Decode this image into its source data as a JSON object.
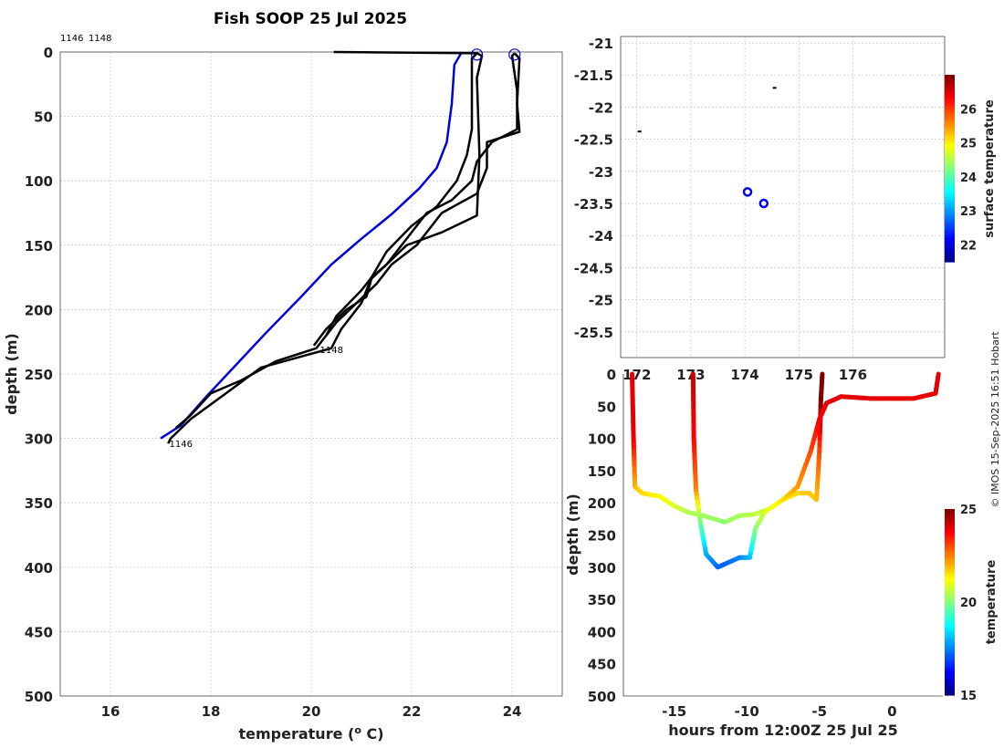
{
  "title": "Fish SOOP 25 Jul 2025",
  "credit": "© IMOS 15-Sep-2025 16:51 Hobart",
  "chart_data": [
    {
      "type": "line",
      "name": "temperature-profiles",
      "xlabel": "temperature (",
      "xlabel_sup": "o",
      "xlabel_end": " C)",
      "ylabel": "depth (m)",
      "xlim": [
        15,
        25
      ],
      "ylim": [
        0,
        500
      ],
      "xticks": [
        16,
        18,
        20,
        22,
        24
      ],
      "yticks": [
        0,
        50,
        100,
        150,
        200,
        250,
        300,
        350,
        400,
        450,
        500
      ],
      "top_labels": [
        "1146",
        "1148"
      ],
      "profile_labels": [
        {
          "text": "1148",
          "temp": 20.1,
          "depth": 231
        },
        {
          "text": "1146",
          "temp": 17.1,
          "depth": 304
        }
      ],
      "surface_markers": [
        {
          "temp": 23.3,
          "depth": 2
        },
        {
          "temp": 24.05,
          "depth": 2
        }
      ],
      "climatology": {
        "color": "#0000dd",
        "points": [
          [
            17.0,
            300
          ],
          [
            17.4,
            290
          ],
          [
            17.9,
            268
          ],
          [
            18.5,
            243
          ],
          [
            19.1,
            218
          ],
          [
            19.8,
            190
          ],
          [
            20.4,
            165
          ],
          [
            21.0,
            145
          ],
          [
            21.6,
            126
          ],
          [
            22.15,
            106
          ],
          [
            22.5,
            90
          ],
          [
            22.7,
            70
          ],
          [
            22.8,
            40
          ],
          [
            22.85,
            10
          ],
          [
            23.0,
            0
          ]
        ]
      },
      "profiles": [
        {
          "color": "#000000",
          "points": [
            [
              20.45,
              0
            ],
            [
              23.3,
              1
            ],
            [
              23.4,
              3
            ],
            [
              23.3,
              20
            ],
            [
              23.35,
              80
            ],
            [
              23.3,
              127
            ],
            [
              22.6,
              140
            ],
            [
              21.9,
              150
            ],
            [
              21.5,
              165
            ],
            [
              21.2,
              176
            ],
            [
              21.1,
              190
            ],
            [
              20.7,
              200
            ],
            [
              20.3,
              215
            ],
            [
              20.05,
              228
            ]
          ]
        },
        {
          "color": "#000000",
          "points": [
            [
              23.3,
              1
            ],
            [
              23.2,
              5
            ],
            [
              23.2,
              60
            ],
            [
              23.1,
              80
            ],
            [
              22.9,
              100
            ],
            [
              22.5,
              120
            ],
            [
              22.0,
              135
            ],
            [
              21.5,
              155
            ],
            [
              21.2,
              175
            ],
            [
              21.0,
              195
            ],
            [
              20.6,
              215
            ],
            [
              20.4,
              230
            ],
            [
              19.0,
              245
            ],
            [
              18.3,
              265
            ],
            [
              17.6,
              285
            ],
            [
              17.2,
              300
            ],
            [
              17.15,
              304
            ]
          ]
        },
        {
          "color": "#000000",
          "points": [
            [
              24.05,
              1
            ],
            [
              24.0,
              3
            ],
            [
              24.1,
              30
            ],
            [
              24.1,
              60
            ],
            [
              23.6,
              70
            ],
            [
              23.3,
              85
            ],
            [
              23.2,
              100
            ],
            [
              22.8,
              115
            ],
            [
              22.3,
              125
            ],
            [
              22.0,
              140
            ],
            [
              21.7,
              155
            ],
            [
              21.5,
              165
            ],
            [
              21.2,
              175
            ],
            [
              21.0,
              185
            ],
            [
              20.5,
              205
            ],
            [
              20.3,
              220
            ]
          ]
        },
        {
          "color": "#000000",
          "points": [
            [
              24.05,
              1
            ],
            [
              24.15,
              5
            ],
            [
              24.1,
              40
            ],
            [
              24.15,
              62
            ],
            [
              23.5,
              70
            ],
            [
              23.5,
              90
            ],
            [
              23.3,
              110
            ],
            [
              22.6,
              125
            ],
            [
              22.1,
              150
            ],
            [
              21.6,
              165
            ],
            [
              21.3,
              180
            ],
            [
              20.9,
              195
            ],
            [
              20.5,
              210
            ],
            [
              20.1,
              230
            ],
            [
              19.3,
              240
            ],
            [
              18.6,
              255
            ],
            [
              18.0,
              265
            ],
            [
              17.6,
              282
            ],
            [
              17.3,
              292
            ]
          ]
        }
      ]
    },
    {
      "type": "scatter",
      "name": "map",
      "colorbar_label": "surface temperature",
      "colorbar_range": [
        21.5,
        27
      ],
      "colorbar_ticks": [
        22,
        23,
        24,
        25,
        26
      ],
      "xlim": [
        171.7,
        177.7
      ],
      "ylim": [
        -25.9,
        -20.9
      ],
      "xticks_visible": [
        "172",
        "173",
        "174",
        "175",
        "176"
      ],
      "yticks": [
        -21,
        -21.5,
        -22,
        -22.5,
        -23,
        -23.5,
        -24,
        -24.5,
        -25,
        -25.5
      ],
      "markers": [
        [
          174.05,
          -23.32
        ],
        [
          174.35,
          -23.5
        ]
      ],
      "track_dots": [
        [
          172.05,
          -22.38
        ],
        [
          174.55,
          -21.7
        ]
      ]
    },
    {
      "type": "scatter",
      "name": "time-depth",
      "xlabel": "hours from 12:00Z 25 Jul 25",
      "ylabel": "depth (m)",
      "colorbar_label": "temperature",
      "colorbar_range": [
        15,
        25
      ],
      "colorbar_ticks": [
        15,
        20,
        25
      ],
      "xlim": [
        -18.5,
        3.5
      ],
      "ylim": [
        0,
        500
      ],
      "xticks": [
        -15,
        -10,
        -5,
        0
      ],
      "yticks": [
        0,
        50,
        100,
        150,
        200,
        250,
        300,
        350,
        400,
        450,
        500
      ],
      "segments": [
        {
          "points": [
            [
              -17.9,
              0,
              24
            ],
            [
              -17.8,
              100,
              24
            ],
            [
              -17.7,
              175,
              22
            ],
            [
              -17.2,
              185,
              21.6
            ],
            [
              -16,
              190,
              21.3
            ],
            [
              -15,
              205,
              21
            ],
            [
              -14,
              215,
              20.5
            ],
            [
              -13,
              220,
              20.3
            ],
            [
              -11.5,
              230,
              20.2
            ],
            [
              -10.5,
              220,
              20.4
            ],
            [
              -9.5,
              218,
              20.6
            ],
            [
              -8.5,
              210,
              20.8
            ],
            [
              -7.5,
              195,
              21.2
            ],
            [
              -6.5,
              185,
              21.6
            ],
            [
              -5.7,
              185,
              21.8
            ],
            [
              -5.2,
              195,
              21.8
            ],
            [
              -5.0,
              120,
              23
            ],
            [
              -4.9,
              40,
              25
            ],
            [
              -4.8,
              0,
              25
            ]
          ]
        },
        {
          "points": [
            [
              -13.7,
              0,
              24.2
            ],
            [
              -13.65,
              100,
              23.8
            ],
            [
              -13.5,
              180,
              22.5
            ],
            [
              -13.2,
              230,
              20
            ],
            [
              -12.8,
              280,
              18
            ],
            [
              -12,
              300,
              17.3
            ],
            [
              -11.5,
              295,
              17.2
            ],
            [
              -10.5,
              285,
              17.5
            ],
            [
              -9.8,
              285,
              18
            ],
            [
              -9.4,
              240,
              20
            ],
            [
              -8.8,
              215,
              20.8
            ],
            [
              -7.5,
              195,
              21.5
            ],
            [
              -6.5,
              175,
              22.2
            ],
            [
              -5.6,
              120,
              23
            ],
            [
              -5.0,
              70,
              23.8
            ],
            [
              -4.5,
              45,
              24
            ],
            [
              -3.5,
              35,
              24
            ],
            [
              -1.5,
              38,
              24
            ],
            [
              0,
              38,
              24
            ],
            [
              1.5,
              38,
              23.9
            ],
            [
              3.0,
              30,
              24
            ],
            [
              3.2,
              0,
              24
            ]
          ]
        }
      ]
    }
  ]
}
